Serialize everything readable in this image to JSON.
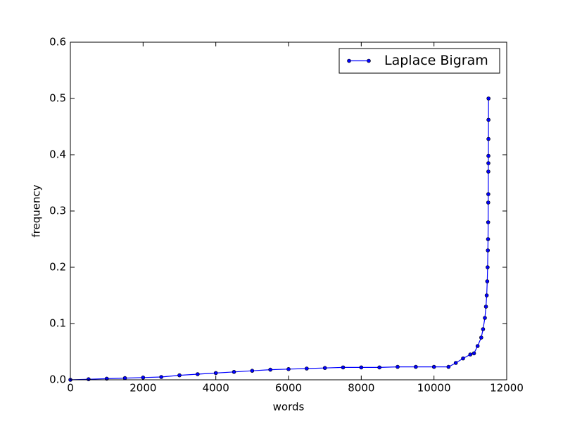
{
  "chart_data": {
    "type": "line",
    "xlabel": "words",
    "ylabel": "frequency",
    "x": [
      0,
      500,
      1000,
      1500,
      2000,
      2500,
      3000,
      3500,
      4000,
      4500,
      5000,
      5500,
      6000,
      6500,
      7000,
      7500,
      8000,
      8500,
      9000,
      9500,
      10000,
      10400,
      10600,
      10800,
      11000,
      11100,
      11200,
      11300,
      11350,
      11400,
      11430,
      11450,
      11465,
      11475,
      11482,
      11487,
      11490,
      11492,
      11494,
      11495,
      11496,
      11497,
      11498,
      11499,
      11500
    ],
    "series": [
      {
        "name": "Laplace Bigram",
        "color": "#0000ff",
        "values": [
          0,
          0.001,
          0.002,
          0.003,
          0.004,
          0.005,
          0.008,
          0.01,
          0.012,
          0.014,
          0.016,
          0.018,
          0.019,
          0.02,
          0.021,
          0.022,
          0.022,
          0.022,
          0.023,
          0.023,
          0.023,
          0.023,
          0.03,
          0.038,
          0.045,
          0.047,
          0.06,
          0.075,
          0.09,
          0.11,
          0.13,
          0.15,
          0.175,
          0.2,
          0.23,
          0.25,
          0.28,
          0.315,
          0.33,
          0.37,
          0.385,
          0.398,
          0.428,
          0.462,
          0.5
        ]
      }
    ],
    "xlim": [
      0,
      12000
    ],
    "xticks": [
      0,
      2000,
      4000,
      6000,
      8000,
      10000,
      12000
    ],
    "ylim": [
      0,
      0.6
    ],
    "yticks": [
      {
        "value": 0,
        "label": "0.0"
      },
      0.1,
      0.2,
      0.3,
      0.4,
      0.5,
      0.6
    ],
    "legend": "upper right"
  }
}
